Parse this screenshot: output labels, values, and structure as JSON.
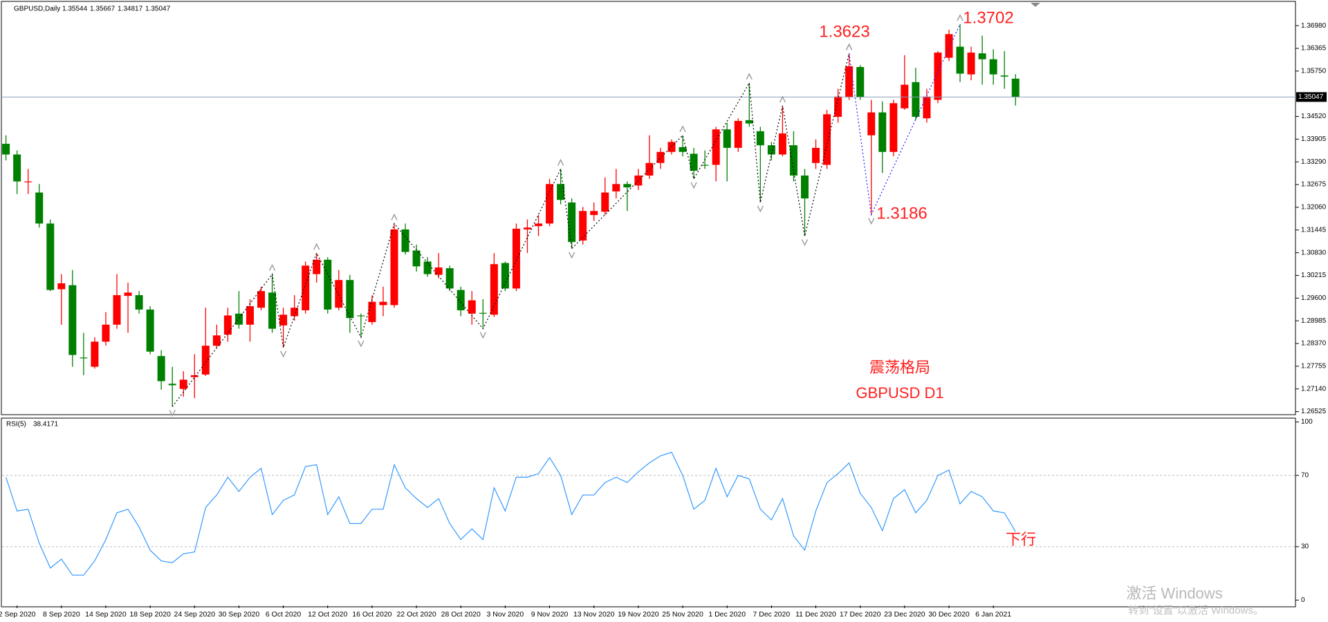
{
  "chart_data": [
    {
      "type": "candlestick",
      "title": "GBPUSD,Daily",
      "up_color": "#ff0000",
      "down_color": "#008000",
      "categories": [
        null,
        "2 Sep 2020",
        null,
        null,
        null,
        "8 Sep 2020",
        null,
        null,
        null,
        "14 Sep 2020",
        null,
        null,
        null,
        "18 Sep 2020",
        null,
        null,
        null,
        "24 Sep 2020",
        null,
        null,
        null,
        "30 Sep 2020",
        null,
        null,
        null,
        "6 Oct 2020",
        null,
        null,
        null,
        "12 Oct 2020",
        null,
        null,
        null,
        "16 Oct 2020",
        null,
        null,
        null,
        "22 Oct 2020",
        null,
        null,
        null,
        "28 Oct 2020",
        null,
        null,
        null,
        "3 Nov 2020",
        null,
        null,
        null,
        "9 Nov 2020",
        null,
        null,
        null,
        "13 Nov 2020",
        null,
        null,
        null,
        "19 Nov 2020",
        null,
        null,
        null,
        "25 Nov 2020",
        null,
        null,
        null,
        "1 Dec 2020",
        null,
        null,
        null,
        "7 Dec 2020",
        null,
        null,
        null,
        "11 Dec 2020",
        null,
        null,
        null,
        "17 Dec 2020",
        null,
        null,
        null,
        "23 Dec 2020",
        null,
        null,
        null,
        "30 Dec 2020",
        null,
        null,
        null,
        "6 Jan 2021",
        null,
        null
      ],
      "open": [
        1.3378,
        1.3349,
        1.3274,
        1.3246,
        1.3162,
        1.2984,
        1.2995,
        1.2799,
        1.2774,
        1.2842,
        1.2888,
        1.2966,
        1.2968,
        1.2929,
        1.2803,
        1.2728,
        1.2714,
        1.2746,
        1.2753,
        1.2831,
        1.2861,
        1.2918,
        1.2888,
        1.2934,
        1.2975,
        1.2886,
        1.2911,
        1.2927,
        1.3025,
        1.3064,
        1.2934,
        1.3009,
        1.2913,
        1.2895,
        1.2941,
        1.2941,
        1.3146,
        1.3089,
        1.3059,
        1.3023,
        1.3041,
        1.2982,
        1.2918,
        1.292,
        1.2915,
        1.3055,
        1.2986,
        1.3146,
        1.3155,
        1.3162,
        1.3269,
        1.3219,
        1.3116,
        1.3185,
        1.3194,
        1.3249,
        1.3269,
        1.3265,
        1.3292,
        1.3326,
        1.3356,
        1.3369,
        1.3351,
        1.3321,
        1.3321,
        1.3417,
        1.3367,
        1.3442,
        1.3412,
        1.3374,
        1.3349,
        1.3374,
        1.3292,
        1.3326,
        1.3321,
        1.3451,
        1.3504,
        1.3586,
        1.3401,
        1.3463,
        1.3356,
        1.3474,
        1.3545,
        1.3447,
        1.3497,
        1.3611,
        1.3641,
        1.3566,
        1.3623,
        1.3607,
        1.3563,
        1.35544
      ],
      "high": [
        1.3401,
        1.336,
        1.331,
        1.3269,
        1.3173,
        1.3025,
        1.3036,
        1.2866,
        1.2854,
        1.2922,
        1.3025,
        1.3002,
        1.2979,
        1.2938,
        1.2819,
        1.2774,
        1.2762,
        1.2808,
        1.2934,
        1.2888,
        1.2934,
        1.2979,
        1.2957,
        1.2991,
        1.3025,
        1.2934,
        1.2968,
        1.3059,
        1.3082,
        1.3071,
        1.3036,
        1.3023,
        1.2918,
        1.2968,
        1.2991,
        1.3162,
        1.3162,
        1.3105,
        1.3071,
        1.3082,
        1.3048,
        1.2991,
        1.2979,
        1.2957,
        1.3082,
        1.3059,
        1.3162,
        1.3173,
        1.3185,
        1.3283,
        1.331,
        1.323,
        1.3207,
        1.3219,
        1.3287,
        1.331,
        1.3276,
        1.331,
        1.3401,
        1.3367,
        1.339,
        1.3401,
        1.3367,
        1.336,
        1.3424,
        1.3435,
        1.3447,
        1.3543,
        1.3424,
        1.3383,
        1.3481,
        1.3412,
        1.331,
        1.339,
        1.347,
        1.3527,
        1.3623,
        1.3591,
        1.3497,
        1.3493,
        1.3497,
        1.3618,
        1.3584,
        1.3527,
        1.3629,
        1.3687,
        1.3702,
        1.3641,
        1.3671,
        1.3634,
        1.3629,
        1.35667
      ],
      "low": [
        1.3333,
        1.3242,
        1.3242,
        1.3151,
        1.2979,
        1.2888,
        1.2774,
        1.2751,
        1.2769,
        1.2831,
        1.2877,
        1.2866,
        1.2918,
        1.2808,
        1.2712,
        1.2666,
        1.2693,
        1.2689,
        1.2749,
        1.2826,
        1.2842,
        1.2877,
        1.2842,
        1.2927,
        1.2866,
        1.2826,
        1.2899,
        1.2918,
        1.3002,
        1.2918,
        1.2927,
        1.2866,
        1.2854,
        1.2888,
        1.2911,
        1.2934,
        1.3078,
        1.3032,
        1.3018,
        1.3014,
        1.2979,
        1.2911,
        1.2888,
        1.2877,
        1.2909,
        1.2979,
        1.2979,
        1.3082,
        1.3128,
        1.3155,
        1.3214,
        1.3094,
        1.3105,
        1.3169,
        1.3185,
        1.323,
        1.3196,
        1.3253,
        1.3283,
        1.331,
        1.3349,
        1.3344,
        1.3283,
        1.331,
        1.3276,
        1.3276,
        1.3356,
        1.3424,
        1.3219,
        1.3333,
        1.3344,
        1.3276,
        1.3128,
        1.331,
        1.331,
        1.3435,
        1.3497,
        1.3497,
        1.3186,
        1.3299,
        1.3344,
        1.347,
        1.3442,
        1.3435,
        1.3488,
        1.3602,
        1.3545,
        1.355,
        1.3538,
        1.3538,
        1.3527,
        1.34817
      ],
      "close": [
        1.3349,
        1.3276,
        1.3276,
        1.3162,
        1.2982,
        1.3,
        1.2806,
        1.2797,
        1.2842,
        1.2888,
        1.2968,
        1.2975,
        1.2929,
        1.2815,
        1.2735,
        1.2724,
        1.2739,
        1.2751,
        1.2831,
        1.2859,
        1.2913,
        1.2888,
        1.2938,
        1.2979,
        1.2877,
        1.2915,
        1.2934,
        1.3048,
        1.3064,
        1.2929,
        1.3009,
        1.2906,
        1.2911,
        1.295,
        1.295,
        1.3146,
        1.3085,
        1.3046,
        1.3025,
        1.3043,
        1.2986,
        1.2927,
        1.2954,
        1.2918,
        1.3052,
        1.2986,
        1.3148,
        1.3151,
        1.3162,
        1.3269,
        1.3226,
        1.3112,
        1.3196,
        1.3196,
        1.3246,
        1.3269,
        1.326,
        1.3292,
        1.3326,
        1.3356,
        1.3383,
        1.3356,
        1.3305,
        1.3319,
        1.3417,
        1.3367,
        1.344,
        1.3433,
        1.3374,
        1.3349,
        1.3406,
        1.3292,
        1.323,
        1.3367,
        1.3458,
        1.3506,
        1.3588,
        1.3504,
        1.3463,
        1.3356,
        1.3488,
        1.3538,
        1.3451,
        1.3506,
        1.3625,
        1.3675,
        1.3568,
        1.3625,
        1.3607,
        1.3566,
        1.356,
        1.35047
      ],
      "price_line_color": "#8aa0b8",
      "ylim": [
        1.2648,
        1.376
      ],
      "yticks": [
        1.26525,
        {
          "value": 1.2714,
          "label": "1.27140"
        },
        1.27755,
        {
          "value": 1.2837,
          "label": "1.28370"
        },
        1.28985,
        {
          "value": 1.296,
          "label": "1.29600"
        },
        1.30215,
        {
          "value": 1.3083,
          "label": "1.30830"
        },
        1.31445,
        {
          "value": 1.3206,
          "label": "1.32060"
        },
        1.32675,
        {
          "value": 1.3329,
          "label": "1.33290"
        },
        1.33905,
        {
          "value": 1.3452,
          "label": "1.34520"
        },
        {
          "value": 1.3575,
          "label": "1.35750"
        },
        1.36365,
        {
          "value": 1.3698,
          "label": "1.36980"
        }
      ],
      "zigzag": [
        {
          "color": "#000000",
          "x": [
            15,
            24,
            25,
            28,
            32,
            35,
            43,
            50,
            51,
            61,
            62,
            67,
            68,
            70,
            72,
            76
          ],
          "values": [
            1.2666,
            1.3025,
            1.2826,
            1.3082,
            1.2854,
            1.3162,
            1.2877,
            1.331,
            1.3094,
            1.3401,
            1.3283,
            1.3543,
            1.3219,
            1.3481,
            1.3128,
            1.3623
          ]
        },
        {
          "color": "#1a1aff",
          "x": [
            76,
            78,
            86
          ],
          "values": [
            1.3623,
            1.3186,
            1.3702
          ]
        }
      ],
      "annotations": [
        "1.3623",
        "1.3702",
        "1.3186",
        "震荡格局",
        "GBPUSD D1"
      ],
      "annotation_color": "#ff2020"
    },
    {
      "type": "line",
      "title": "RSI(5)",
      "color": "#3399ff",
      "values": [
        69,
        50,
        51,
        32,
        18,
        23,
        14,
        14,
        22,
        34,
        49,
        51,
        41,
        28,
        22,
        21,
        26,
        27,
        52,
        59,
        69,
        61,
        69,
        74,
        48,
        56,
        59,
        75,
        76,
        48,
        58,
        43,
        43,
        51,
        51,
        76,
        63,
        57,
        52,
        57,
        43,
        34,
        40,
        34,
        63,
        50,
        69,
        69,
        71,
        80,
        70,
        48,
        59,
        59,
        66,
        69,
        66,
        72,
        77,
        81,
        83,
        70,
        51,
        56,
        74,
        58,
        70,
        68,
        51,
        45,
        57,
        36,
        28,
        50,
        66,
        71,
        77,
        60,
        52,
        39,
        57,
        62,
        49,
        56,
        70,
        73,
        54,
        61,
        58,
        50,
        49,
        38.4171
      ],
      "ylim": [
        -3,
        101
      ],
      "yticks": [
        0,
        30,
        70,
        100
      ],
      "levels": [
        30,
        70
      ],
      "annotations": [
        "下行"
      ]
    }
  ],
  "watermark": [
    "激活 Windows",
    "转到\"设置\"以激活 Windows。"
  ]
}
